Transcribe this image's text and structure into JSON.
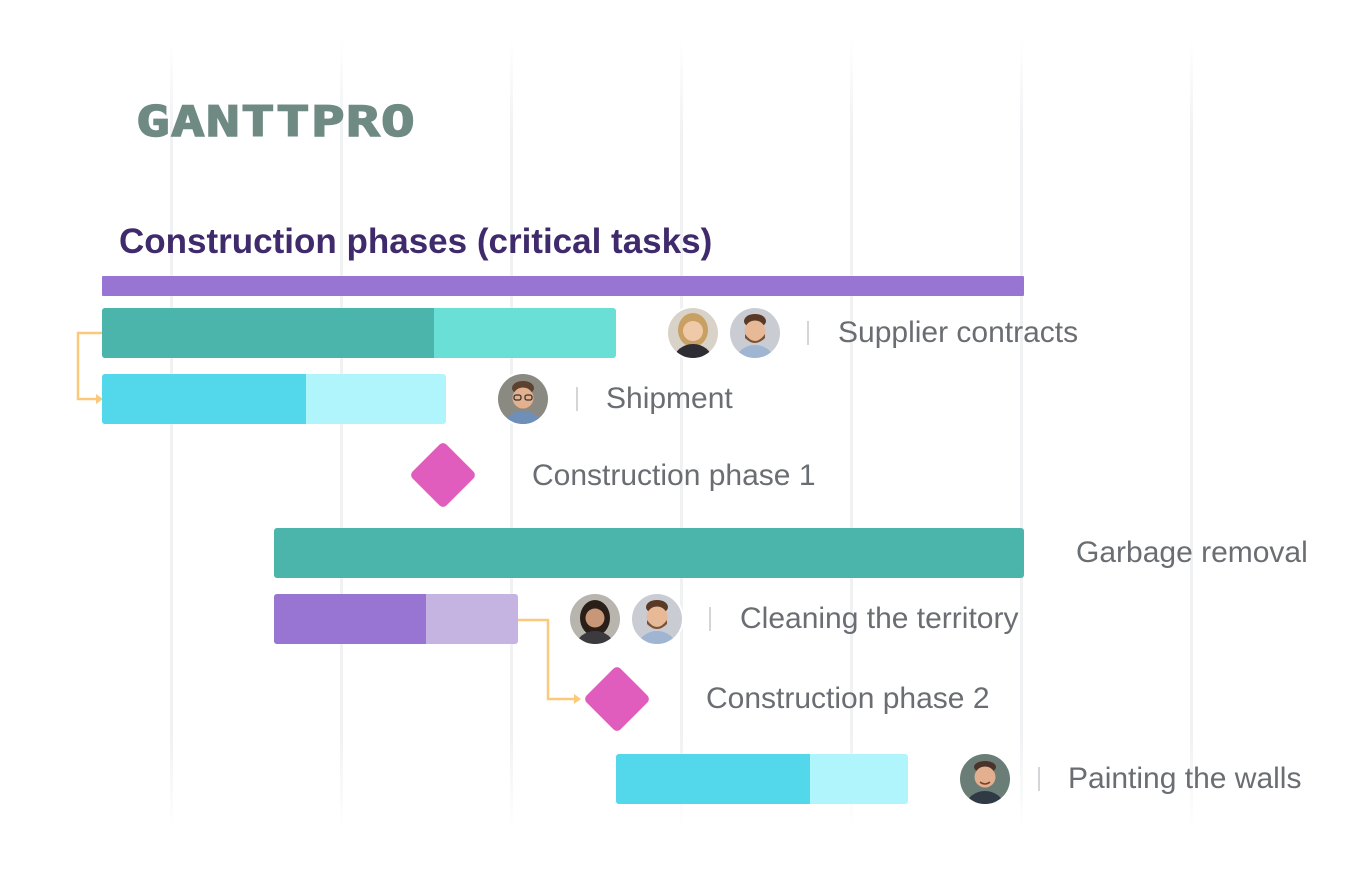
{
  "logo": {
    "text": "GANTTPRO"
  },
  "header": {
    "title": "Construction phases (critical tasks)"
  },
  "colors": {
    "summary": "#9874d3",
    "teal_done": "#4bb5ab",
    "teal_rest": "#6adfd6",
    "cyan_done": "#52d8ea",
    "cyan_rest": "#b0f5fb",
    "purple_done": "#9874d3",
    "purple_rest": "#c5b4e2",
    "milestone": "#e05cbd",
    "dependency": "#fbc97a"
  },
  "tasks": [
    {
      "label": "Supplier contracts",
      "assignees": [
        "woman-blonde-avatar",
        "man-beard-avatar"
      ]
    },
    {
      "label": "Shipment",
      "assignees": [
        "man-glasses-avatar"
      ]
    },
    {
      "label": "Construction phase 1",
      "type": "milestone"
    },
    {
      "label": "Garbage removal",
      "assignees": []
    },
    {
      "label": "Cleaning the territory",
      "assignees": [
        "woman-dark-hair-avatar",
        "man-beard-avatar"
      ]
    },
    {
      "label": "Construction phase 2",
      "type": "milestone"
    },
    {
      "label": "Painting the walls",
      "assignees": [
        "man-smile-avatar"
      ]
    }
  ]
}
